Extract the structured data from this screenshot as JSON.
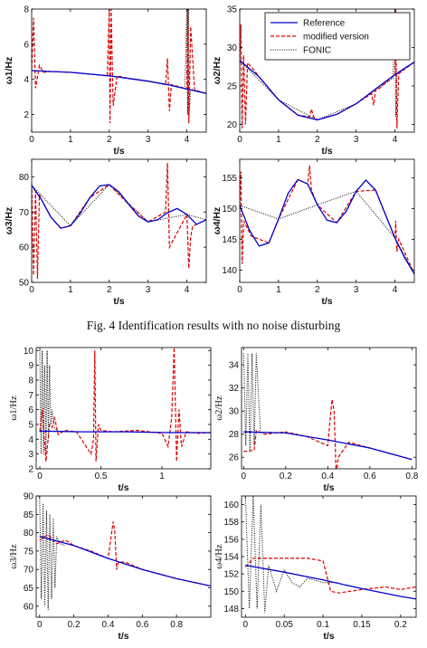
{
  "caption": "Fig. 4  Identification results with no noise disturbing",
  "legend": {
    "entries": [
      {
        "label": "Reference",
        "color": "#0000cc",
        "style": "solid"
      },
      {
        "label": "modified version",
        "color": "#dd0000",
        "style": "dashed"
      },
      {
        "label": "FONIC",
        "color": "#000000",
        "style": "dotted"
      }
    ],
    "placement": "top-right of panel 2"
  },
  "chart_data": [
    {
      "type": "line",
      "panel": "1",
      "xlabel": "t/s",
      "ylabel": "ω1/Hz",
      "xlim": [
        0,
        4.5
      ],
      "ylim": [
        1,
        8
      ],
      "xticks": [
        0,
        1,
        2,
        3,
        4
      ],
      "yticks": [
        2,
        4,
        6,
        8
      ],
      "series": [
        {
          "name": "Reference",
          "x": [
            0,
            0.5,
            1,
            1.5,
            2,
            2.5,
            3,
            3.5,
            4,
            4.5
          ],
          "values": [
            4.5,
            4.45,
            4.4,
            4.3,
            4.2,
            4.05,
            3.9,
            3.7,
            3.45,
            3.2
          ]
        },
        {
          "name": "modified version",
          "x": [
            0,
            0.05,
            0.1,
            0.2,
            0.3,
            0.5,
            1,
            1.5,
            1.95,
            2.0,
            2.02,
            2.05,
            2.1,
            2.2,
            2.5,
            3,
            3.45,
            3.5,
            3.55,
            3.6,
            4.0,
            4.02,
            4.05,
            4.1,
            4.2,
            4.5
          ],
          "values": [
            4.6,
            7.5,
            3.5,
            4.8,
            4.4,
            4.45,
            4.4,
            4.3,
            4.2,
            8,
            1.5,
            8,
            2.5,
            4.2,
            4.05,
            3.9,
            3.7,
            5.2,
            2.2,
            3.7,
            3.45,
            8,
            1.5,
            7,
            3.4,
            3.2
          ]
        },
        {
          "name": "FONIC",
          "x": [
            0,
            1,
            2,
            3,
            3.95,
            4.0,
            4.02,
            4.04,
            4.06,
            4.1,
            4.5
          ],
          "values": [
            4.5,
            4.4,
            4.2,
            3.9,
            3.5,
            8,
            2,
            8,
            2,
            3.45,
            3.2
          ]
        }
      ]
    },
    {
      "type": "line",
      "panel": "2",
      "xlabel": "t/s",
      "ylabel": "ω2/Hz",
      "xlim": [
        0,
        4.5
      ],
      "ylim": [
        19,
        35
      ],
      "xticks": [
        0,
        1,
        2,
        3,
        4
      ],
      "yticks": [
        20,
        25,
        30,
        35
      ],
      "series": [
        {
          "name": "Reference",
          "x": [
            0,
            0.5,
            1,
            1.5,
            2,
            2.5,
            3,
            3.5,
            4,
            4.5
          ],
          "values": [
            28.3,
            26.2,
            23.2,
            21.2,
            20.6,
            21.3,
            22.7,
            24.6,
            26.5,
            28.1
          ]
        },
        {
          "name": "modified version",
          "x": [
            0,
            0.03,
            0.06,
            0.1,
            0.15,
            0.2,
            0.3,
            0.5,
            1,
            1.5,
            1.8,
            1.85,
            1.9,
            2,
            2.5,
            3,
            3.4,
            3.45,
            3.5,
            3.6,
            4,
            4.02,
            4.05,
            4.1,
            4.5
          ],
          "values": [
            28,
            33,
            19.5,
            29,
            20,
            28,
            27.5,
            26.2,
            23.2,
            21.2,
            21,
            22,
            21,
            20.6,
            21.3,
            22.7,
            24,
            22.5,
            24.5,
            24.7,
            26.5,
            35,
            19.5,
            26.6,
            28.1
          ]
        },
        {
          "name": "FONIC",
          "x": [
            0,
            1,
            2,
            3,
            3.95,
            4.0,
            4.02,
            4.05,
            4.5
          ],
          "values": [
            28.3,
            23.2,
            20.6,
            22.7,
            26,
            35,
            21,
            26.5,
            28.1
          ]
        }
      ]
    },
    {
      "type": "line",
      "panel": "3",
      "xlabel": "t/s",
      "ylabel": "ω3/Hz",
      "xlim": [
        0,
        4.5
      ],
      "ylim": [
        50,
        85
      ],
      "xticks": [
        0,
        1,
        2,
        3,
        4
      ],
      "yticks": [
        50,
        60,
        70,
        80
      ],
      "series": [
        {
          "name": "Reference",
          "x": [
            0,
            0.25,
            0.5,
            0.75,
            1,
            1.25,
            1.5,
            1.75,
            2,
            2.25,
            2.5,
            2.75,
            3,
            3.25,
            3.5,
            3.75,
            4,
            4.25,
            4.5
          ],
          "values": [
            77.6,
            73.6,
            68.5,
            65.4,
            66.1,
            69.6,
            74.1,
            77.4,
            77.8,
            75.7,
            72.2,
            68.9,
            67.2,
            67.8,
            69.8,
            71.0,
            69.3,
            66.5,
            67.8
          ]
        },
        {
          "name": "modified version",
          "x": [
            0,
            0.05,
            0.1,
            0.15,
            0.2,
            0.25,
            0.5,
            0.75,
            1,
            1.5,
            2,
            2.5,
            3,
            3.45,
            3.5,
            3.55,
            4,
            4.05,
            4.1,
            4.15,
            4.5
          ],
          "values": [
            78,
            52,
            76,
            51,
            75,
            73.6,
            68.5,
            65.4,
            66.1,
            74.1,
            77.8,
            72.2,
            67.2,
            70,
            84,
            60,
            69.3,
            54,
            63,
            66,
            67.8
          ]
        },
        {
          "name": "FONIC",
          "x": [
            0,
            1,
            2,
            3,
            4,
            4.5
          ],
          "values": [
            77.6,
            66.1,
            77.8,
            67.2,
            69.3,
            67.8
          ]
        }
      ]
    },
    {
      "type": "line",
      "panel": "4",
      "xlabel": "t/s",
      "ylabel": "ω4/Hz",
      "xlim": [
        0,
        4.5
      ],
      "ylim": [
        138,
        158
      ],
      "xticks": [
        0,
        1,
        2,
        3,
        4
      ],
      "yticks": [
        140,
        145,
        150,
        155
      ],
      "series": [
        {
          "name": "Reference",
          "x": [
            0,
            0.25,
            0.5,
            0.75,
            1,
            1.25,
            1.5,
            1.75,
            2,
            2.25,
            2.5,
            2.75,
            3,
            3.25,
            3.5,
            3.75,
            4,
            4.25,
            4.5
          ],
          "values": [
            150.5,
            146.5,
            143.9,
            144.4,
            148.3,
            152.5,
            154.7,
            154.0,
            150.6,
            148.1,
            147.7,
            149.6,
            152.8,
            154.6,
            153.0,
            149.1,
            145.2,
            142.0,
            139.4
          ]
        },
        {
          "name": "modified version",
          "x": [
            0,
            0.03,
            0.06,
            0.1,
            0.3,
            0.75,
            1,
            1.5,
            1.75,
            1.8,
            1.85,
            2,
            2.5,
            3,
            3.5,
            4,
            4.02,
            4.05,
            4.1,
            4.5
          ],
          "values": [
            150.5,
            156,
            141,
            148,
            145.5,
            144.4,
            148.3,
            154.7,
            154,
            157,
            153,
            150.6,
            147.7,
            152.8,
            153,
            145.2,
            148,
            143,
            145,
            139.4
          ]
        },
        {
          "name": "FONIC",
          "x": [
            0,
            1,
            2,
            3,
            4,
            4.5
          ],
          "values": [
            150.5,
            148.3,
            150.6,
            152.8,
            145.2,
            139.4
          ]
        }
      ]
    },
    {
      "type": "line",
      "panel": "5",
      "xlabel": "t/s",
      "ylabel": "ω1/Hz",
      "xlim": [
        -0.03,
        1.4
      ],
      "ylim": [
        2,
        10.2
      ],
      "xticks": [
        0,
        0.5,
        1
      ],
      "yticks": [
        2,
        3,
        4,
        5,
        6,
        7,
        8,
        9,
        10
      ],
      "series": [
        {
          "name": "Reference",
          "x": [
            0,
            0.35,
            0.7,
            1.05,
            1.4
          ],
          "values": [
            4.55,
            4.5,
            4.5,
            4.45,
            4.45
          ]
        },
        {
          "name": "modified version",
          "x": [
            0,
            0.02,
            0.05,
            0.08,
            0.1,
            0.12,
            0.15,
            0.2,
            0.3,
            0.42,
            0.44,
            0.45,
            0.46,
            0.48,
            0.5,
            0.6,
            0.8,
            1,
            1.05,
            1.08,
            1.1,
            1.12,
            1.14,
            1.16,
            1.2,
            1.3,
            1.4
          ],
          "values": [
            4.5,
            6,
            2.5,
            5,
            4.8,
            5.5,
            4.3,
            4.6,
            4.5,
            3,
            4,
            10,
            2.5,
            5,
            4.6,
            4.5,
            4.6,
            4.4,
            3.5,
            5.5,
            10.2,
            2.5,
            6,
            3.5,
            4.5,
            4.4,
            4.45
          ]
        },
        {
          "name": "FONIC",
          "x": [
            0,
            0.01,
            0.02,
            0.03,
            0.04,
            0.05,
            0.06,
            0.07,
            0.08,
            0.09,
            0.1,
            0.12,
            0.15
          ],
          "values": [
            10,
            3,
            10,
            3,
            9,
            3,
            10,
            4,
            9,
            5,
            6,
            4.8,
            4.5
          ]
        }
      ]
    },
    {
      "type": "line",
      "panel": "6",
      "xlabel": "t/s",
      "ylabel": "ω2/Hz",
      "xlim": [
        -0.01,
        0.82
      ],
      "ylim": [
        25,
        35.5
      ],
      "xticks": [
        0,
        0.2,
        0.4,
        0.6,
        0.8
      ],
      "yticks": [
        26,
        28,
        30,
        32,
        34
      ],
      "series": [
        {
          "name": "Reference",
          "x": [
            0,
            0.2,
            0.4,
            0.6,
            0.8
          ],
          "values": [
            28.2,
            28.1,
            27.5,
            26.8,
            25.8
          ]
        },
        {
          "name": "modified version",
          "x": [
            0,
            0.05,
            0.06,
            0.1,
            0.2,
            0.3,
            0.4,
            0.42,
            0.43,
            0.44,
            0.45,
            0.5,
            0.6,
            0.8
          ],
          "values": [
            26.5,
            26.6,
            28.3,
            28,
            28.2,
            27.8,
            27,
            31,
            30,
            24.5,
            26,
            27.3,
            26.8,
            25.8
          ]
        },
        {
          "name": "FONIC",
          "x": [
            0,
            0.01,
            0.02,
            0.03,
            0.04,
            0.05,
            0.06,
            0.08
          ],
          "values": [
            35,
            27,
            35,
            26.5,
            35,
            27,
            35,
            28.1
          ]
        }
      ]
    },
    {
      "type": "line",
      "panel": "7",
      "xlabel": "t/s",
      "ylabel": "ω3/Hz",
      "xlim": [
        -0.02,
        1.0
      ],
      "ylim": [
        57,
        90
      ],
      "xticks": [
        0,
        0.2,
        0.4,
        0.6,
        0.8
      ],
      "yticks": [
        60,
        65,
        70,
        75,
        80,
        85,
        90
      ],
      "series": [
        {
          "name": "Reference",
          "x": [
            0,
            0.2,
            0.4,
            0.6,
            0.8,
            1.0
          ],
          "values": [
            79,
            76.5,
            73,
            70,
            67.5,
            65.5
          ]
        },
        {
          "name": "modified version",
          "x": [
            0,
            0.05,
            0.1,
            0.15,
            0.2,
            0.3,
            0.4,
            0.43,
            0.44,
            0.45,
            0.46,
            0.5,
            0.6,
            0.8,
            1.0
          ],
          "values": [
            78,
            79.5,
            77,
            78,
            76.5,
            75,
            73,
            83,
            80,
            70,
            72,
            72,
            70,
            67.5,
            65.5
          ]
        },
        {
          "name": "FONIC",
          "x": [
            0,
            0.01,
            0.02,
            0.03,
            0.04,
            0.05,
            0.06,
            0.07,
            0.08,
            0.09,
            0.1,
            0.12,
            0.15
          ],
          "values": [
            90,
            62,
            88,
            60,
            86,
            59,
            85,
            62,
            84,
            65,
            79,
            77,
            76.5
          ]
        }
      ]
    },
    {
      "type": "line",
      "panel": "8",
      "xlabel": "t/s",
      "ylabel": "ω4/Hz",
      "xlim": [
        -0.005,
        0.22
      ],
      "ylim": [
        147,
        161
      ],
      "xticks": [
        0,
        0.05,
        0.1,
        0.15,
        0.2
      ],
      "yticks": [
        148,
        150,
        152,
        154,
        156,
        158,
        160
      ],
      "series": [
        {
          "name": "Reference",
          "x": [
            0,
            0.05,
            0.1,
            0.15,
            0.2,
            0.22
          ],
          "values": [
            153,
            152.2,
            151.3,
            150.3,
            149.4,
            149.1
          ]
        },
        {
          "name": "modified version",
          "x": [
            0,
            0.01,
            0.02,
            0.05,
            0.08,
            0.1,
            0.11,
            0.12,
            0.15,
            0.18,
            0.2,
            0.22
          ],
          "values": [
            152.8,
            153.8,
            153.8,
            153.8,
            153.8,
            153.5,
            150,
            149.8,
            150.2,
            150.5,
            150.2,
            150.5
          ]
        },
        {
          "name": "FONIC",
          "x": [
            0,
            0.005,
            0.01,
            0.015,
            0.02,
            0.025,
            0.03,
            0.04,
            0.05,
            0.06,
            0.07,
            0.08,
            0.1,
            0.12
          ],
          "values": [
            161,
            148,
            161,
            148,
            160,
            147.5,
            153,
            150,
            152.5,
            151,
            150.5,
            151.5,
            151,
            151
          ]
        }
      ]
    }
  ]
}
